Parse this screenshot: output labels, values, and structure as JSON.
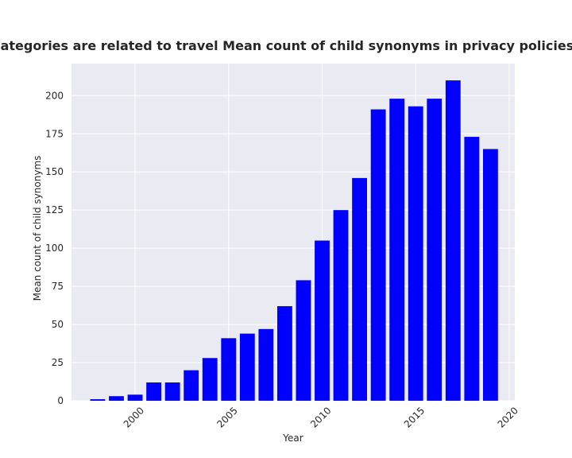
{
  "chart_data": {
    "type": "bar",
    "title": " when categories are related to travel Mean count of child synonyms in privacy policies by Year",
    "xlabel": "Year",
    "ylabel": "Mean count of child synonyms",
    "x": [
      1998,
      1999,
      2000,
      2001,
      2002,
      2003,
      2004,
      2005,
      2006,
      2007,
      2008,
      2009,
      2010,
      2011,
      2012,
      2013,
      2014,
      2015,
      2016,
      2017,
      2018,
      2019
    ],
    "values": [
      1,
      3,
      4,
      12,
      12,
      20,
      28,
      41,
      44,
      47,
      62,
      79,
      105,
      125,
      146,
      191,
      198,
      193,
      198,
      210,
      173,
      165
    ],
    "xlim": [
      1996.6,
      2020.3
    ],
    "ylim": [
      0,
      221
    ],
    "xticks": [
      2000,
      2005,
      2010,
      2015,
      2020
    ],
    "xtick_labels": [
      "2000",
      "2005",
      "2010",
      "2015",
      "2020"
    ],
    "yticks": [
      0,
      25,
      50,
      75,
      100,
      125,
      150,
      175,
      200
    ],
    "ytick_labels": [
      "0",
      "25",
      "50",
      "75",
      "100",
      "125",
      "150",
      "175",
      "200"
    ],
    "grid": true,
    "bar_color": "#0000ff",
    "background_color": "#eaeaf2",
    "grid_color": "#ffffff"
  }
}
